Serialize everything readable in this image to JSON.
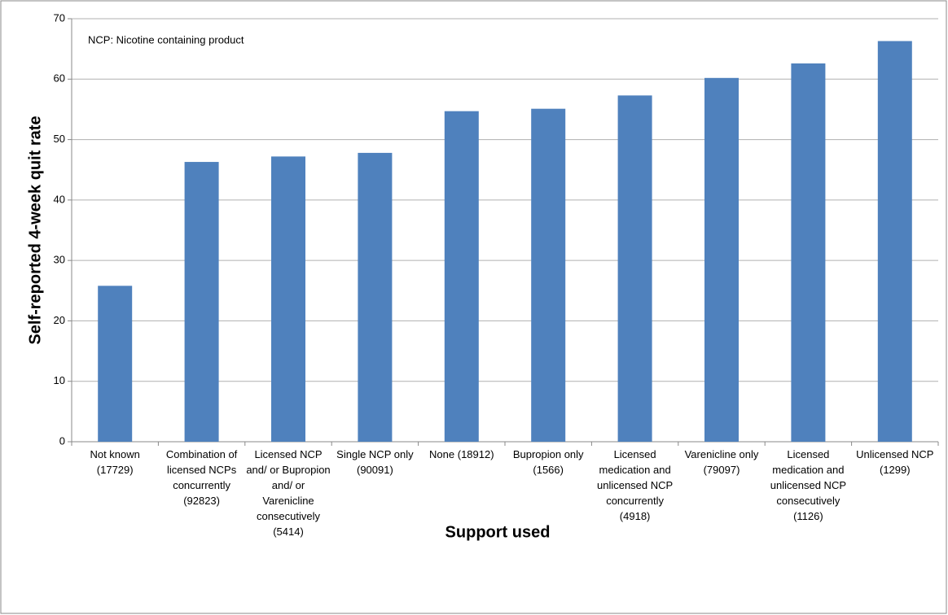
{
  "chart_data": {
    "type": "bar",
    "annotation": "NCP: Nicotine containing product",
    "x_label": "Support used",
    "y_label": "Self-reported 4-week quit rate",
    "categories": [
      "Not known (17729)",
      "Combination of licensed NCPs concurrently (92823)",
      "Licensed NCP and/ or Bupropion and/ or Varenicline consecutively (5414)",
      "Single NCP only (90091)",
      "None (18912)",
      "Bupropion only (1566)",
      "Licensed medication and unlicensed NCP concurrently (4918)",
      "Varenicline only (79097)",
      "Licensed medication and unlicensed NCP consecutively (1126)",
      "Unlicensed NCP (1299)"
    ],
    "values": [
      25.8,
      46.3,
      47.2,
      47.8,
      54.7,
      55.1,
      57.3,
      60.2,
      62.6,
      66.3
    ],
    "color": "#4f81bd",
    "ylim": [
      0,
      70
    ],
    "yticks": [
      0,
      10,
      20,
      30,
      40,
      50,
      60,
      70
    ],
    "grid": true
  }
}
